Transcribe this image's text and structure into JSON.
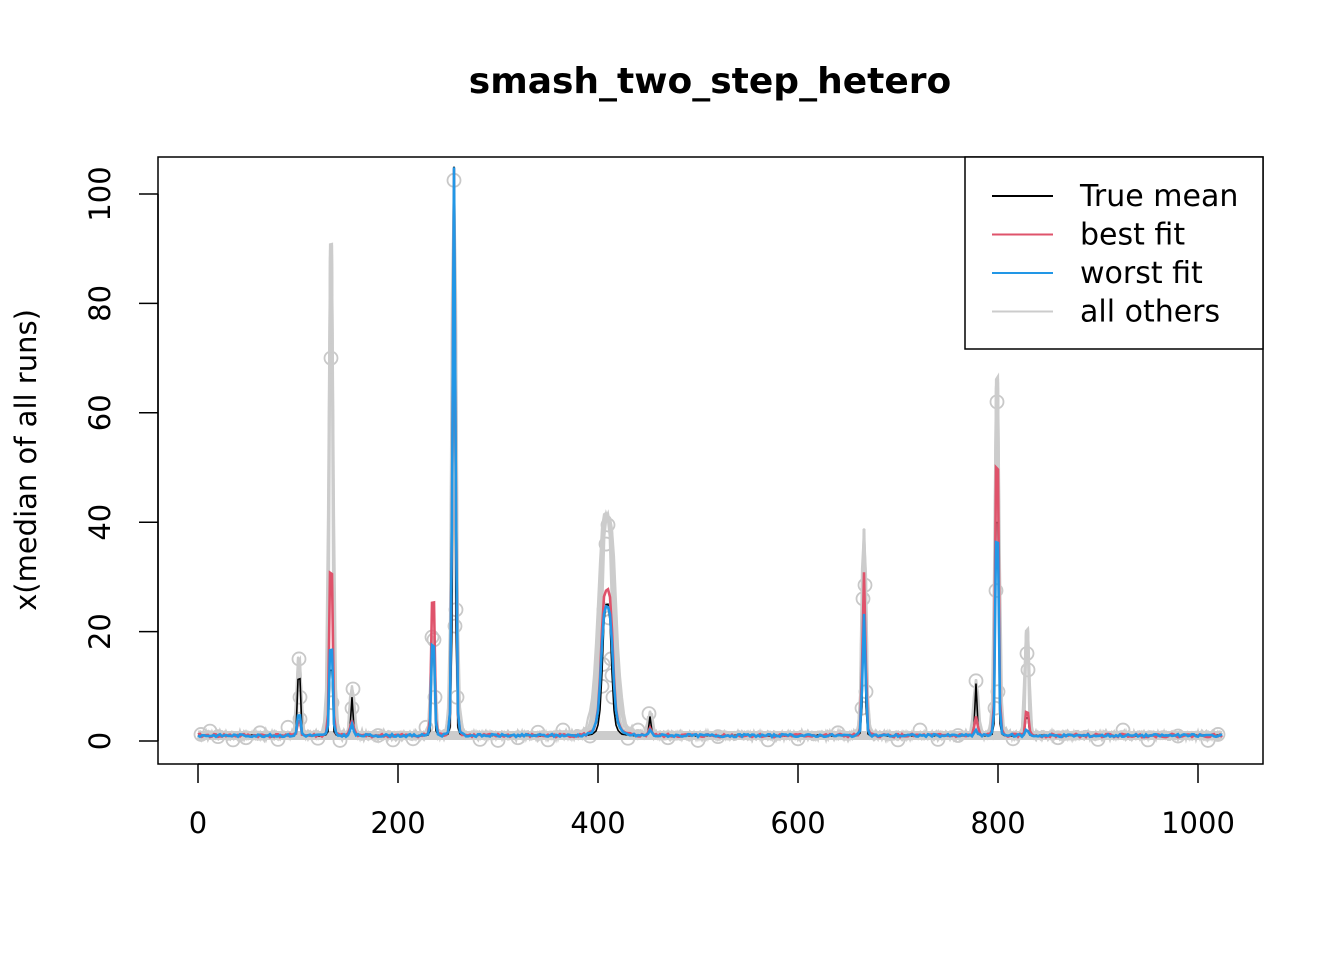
{
  "chart_data": {
    "type": "line",
    "title": "smash_two_step_hetero",
    "xlabel": "",
    "ylabel": "x(median of all runs)",
    "xlim": [
      0,
      1024
    ],
    "ylim": [
      0,
      102
    ],
    "xticks": [
      0,
      200,
      400,
      600,
      800,
      1000
    ],
    "yticks": [
      0,
      20,
      40,
      60,
      80,
      100
    ],
    "grid": false,
    "legend_position": "top-right",
    "colors": {
      "true_mean": "#000000",
      "best_fit": "#DF536B",
      "worst_fit": "#2297E6",
      "all_others": "#CCCCCC"
    },
    "legend": [
      {
        "label": "True mean",
        "color": "#000000"
      },
      {
        "label": "best fit",
        "color": "#DF536B"
      },
      {
        "label": "worst fit",
        "color": "#2297E6"
      },
      {
        "label": "all others",
        "color": "#CCCCCC"
      }
    ],
    "peaks": [
      {
        "x": 101,
        "true": 14,
        "best": 4,
        "worst": 5,
        "others": 15
      },
      {
        "x": 133,
        "true": 16,
        "best": 33.5,
        "worst": 18,
        "others": 92
      },
      {
        "x": 154,
        "true": 8,
        "best": 4,
        "worst": 3,
        "others": 9.5
      },
      {
        "x": 235,
        "true": 19,
        "best": 27.5,
        "worst": 19,
        "others": 19
      },
      {
        "x": 256,
        "true": 105,
        "best": 105,
        "worst": 105,
        "others": 102
      },
      {
        "x": 409,
        "true": 25,
        "best": 27.5,
        "worst": 24.5,
        "others": 41
      },
      {
        "x": 452,
        "true": 4.5,
        "best": 2.5,
        "worst": 2,
        "others": 5
      },
      {
        "x": 666,
        "true": 28,
        "best": 31,
        "worst": 23,
        "others": 38.5
      },
      {
        "x": 778,
        "true": 10.5,
        "best": 4.5,
        "worst": 2,
        "others": 11
      },
      {
        "x": 799,
        "true": 50,
        "best": 54.5,
        "worst": 39.5,
        "others": 67
      },
      {
        "x": 829,
        "true": 5,
        "best": 5.8,
        "worst": 2,
        "others": 21
      }
    ],
    "baseline": 1,
    "points": [
      {
        "x": 101,
        "y": 15
      },
      {
        "x": 102,
        "y": 8
      },
      {
        "x": 133,
        "y": 70
      },
      {
        "x": 134,
        "y": 7
      },
      {
        "x": 154,
        "y": 6
      },
      {
        "x": 155,
        "y": 9.5
      },
      {
        "x": 234,
        "y": 19
      },
      {
        "x": 236,
        "y": 18.5
      },
      {
        "x": 237,
        "y": 8
      },
      {
        "x": 256,
        "y": 102.5
      },
      {
        "x": 258,
        "y": 24
      },
      {
        "x": 257,
        "y": 21
      },
      {
        "x": 259,
        "y": 8
      },
      {
        "x": 408,
        "y": 36
      },
      {
        "x": 410,
        "y": 39.5
      },
      {
        "x": 404,
        "y": 10
      },
      {
        "x": 406,
        "y": 24
      },
      {
        "x": 411,
        "y": 22.5
      },
      {
        "x": 413,
        "y": 15
      },
      {
        "x": 414,
        "y": 12
      },
      {
        "x": 405,
        "y": 14
      },
      {
        "x": 415,
        "y": 8
      },
      {
        "x": 451,
        "y": 5
      },
      {
        "x": 665,
        "y": 26
      },
      {
        "x": 667,
        "y": 28.5
      },
      {
        "x": 664,
        "y": 6
      },
      {
        "x": 668,
        "y": 9
      },
      {
        "x": 778,
        "y": 11
      },
      {
        "x": 799,
        "y": 62
      },
      {
        "x": 798,
        "y": 27.5
      },
      {
        "x": 800,
        "y": 9
      },
      {
        "x": 797,
        "y": 6
      },
      {
        "x": 829,
        "y": 16
      },
      {
        "x": 830,
        "y": 13
      },
      {
        "x": 102,
        "y": 4
      },
      {
        "x": 3,
        "y": 1.2
      },
      {
        "x": 12,
        "y": 1.8
      },
      {
        "x": 20,
        "y": 0.8
      },
      {
        "x": 35,
        "y": 0.2
      },
      {
        "x": 48,
        "y": 0.6
      },
      {
        "x": 62,
        "y": 1.5
      },
      {
        "x": 80,
        "y": 0.3
      },
      {
        "x": 90,
        "y": 2.5
      },
      {
        "x": 120,
        "y": 0.5
      },
      {
        "x": 142,
        "y": 0.1
      },
      {
        "x": 180,
        "y": 1.0
      },
      {
        "x": 195,
        "y": 0.2
      },
      {
        "x": 215,
        "y": 0.4
      },
      {
        "x": 228,
        "y": 2.5
      },
      {
        "x": 282,
        "y": 0.3
      },
      {
        "x": 300,
        "y": 0.1
      },
      {
        "x": 320,
        "y": 0.6
      },
      {
        "x": 340,
        "y": 1.6
      },
      {
        "x": 350,
        "y": 0.2
      },
      {
        "x": 365,
        "y": 2.0
      },
      {
        "x": 392,
        "y": 0.9
      },
      {
        "x": 430,
        "y": 0.5
      },
      {
        "x": 440,
        "y": 2.0
      },
      {
        "x": 470,
        "y": 0.6
      },
      {
        "x": 500,
        "y": 0.1
      },
      {
        "x": 520,
        "y": 0.8
      },
      {
        "x": 570,
        "y": 0.2
      },
      {
        "x": 600,
        "y": 0.4
      },
      {
        "x": 640,
        "y": 1.5
      },
      {
        "x": 700,
        "y": 0.2
      },
      {
        "x": 722,
        "y": 2.0
      },
      {
        "x": 740,
        "y": 0.3
      },
      {
        "x": 760,
        "y": 1.0
      },
      {
        "x": 815,
        "y": 0.4
      },
      {
        "x": 860,
        "y": 0.6
      },
      {
        "x": 900,
        "y": 0.3
      },
      {
        "x": 925,
        "y": 2.0
      },
      {
        "x": 950,
        "y": 0.2
      },
      {
        "x": 980,
        "y": 0.9
      },
      {
        "x": 1010,
        "y": 0.1
      },
      {
        "x": 1020,
        "y": 1.2
      }
    ]
  }
}
